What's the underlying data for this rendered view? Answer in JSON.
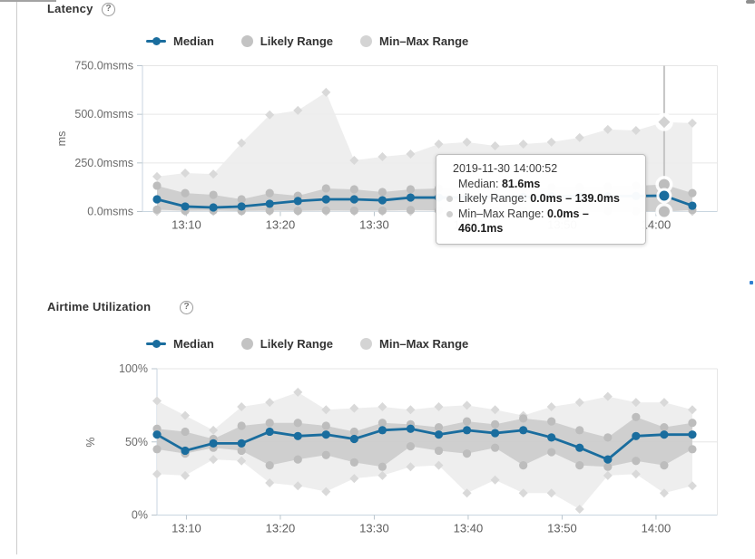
{
  "ui": {
    "help_symbol": "?",
    "tooltip": {
      "timestamp": "2019-11-30 14:00:52",
      "median_label": "Median:",
      "median_value": "81.6ms",
      "likely_label": "Likely Range:",
      "likely_value": "0.0ms – 139.0ms",
      "minmax_label": "Min–Max Range:",
      "minmax_value": "0.0ms – 460.1ms"
    },
    "colors": {
      "median_blue": "#1a6d9e",
      "likely_band": "#c9c9c9",
      "likely_marker": "#bdbdbd",
      "minmax_band": "#ececec",
      "minmax_marker": "#d9d9d9",
      "axis_line": "#c9d6e0",
      "gridline": "#e6e6e6"
    }
  },
  "chart_data": [
    {
      "type": "line",
      "title": "Latency",
      "ylabel": "ms",
      "ylim": [
        0,
        750
      ],
      "grid": true,
      "legend": [
        {
          "label": "Median"
        },
        {
          "label": "Likely Range"
        },
        {
          "label": "Min–Max Range"
        }
      ],
      "y_ticks": [
        [
          0,
          "0.0msms"
        ],
        [
          250,
          "250.0msms"
        ],
        [
          500,
          "500.0msms"
        ],
        [
          750,
          "750.0msms"
        ]
      ],
      "x_ticks": [
        "13:10",
        "13:20",
        "13:30",
        "13:40",
        "13:50",
        "14:00"
      ],
      "x": [
        "13:06:52",
        "13:09:52",
        "13:12:52",
        "13:15:52",
        "13:18:52",
        "13:21:52",
        "13:24:52",
        "13:27:52",
        "13:30:52",
        "13:33:52",
        "13:36:52",
        "13:39:52",
        "13:42:52",
        "13:45:52",
        "13:48:52",
        "13:51:52",
        "13:54:52",
        "13:57:52",
        "14:00:52",
        "14:03:52"
      ],
      "series": [
        {
          "name": "Median",
          "values": [
            63,
            26,
            21,
            26,
            40,
            54,
            63,
            63,
            58,
            72,
            72,
            74,
            76,
            75,
            78,
            79,
            78,
            80,
            81.6,
            30
          ]
        },
        {
          "name": "Likely Range",
          "low": [
            10,
            4,
            5,
            3,
            5,
            4,
            6,
            5,
            5,
            8,
            6,
            5,
            5,
            5,
            5,
            4,
            3,
            2,
            0,
            8
          ],
          "high": [
            133,
            95,
            86,
            63,
            95,
            81,
            119,
            114,
            100,
            114,
            119,
            120,
            122,
            118,
            124,
            126,
            128,
            132,
            139,
            95
          ]
        },
        {
          "name": "Min–Max Range",
          "low": [
            0,
            0,
            0,
            0,
            0,
            0,
            0,
            0,
            0,
            0,
            0,
            0,
            0,
            0,
            0,
            0,
            0,
            0,
            0,
            0
          ],
          "high": [
            180,
            198,
            193,
            352,
            497,
            520,
            613,
            263,
            282,
            296,
            347,
            357,
            338,
            347,
            357,
            380,
            422,
            417,
            460.1,
            455
          ]
        }
      ],
      "selected": {
        "index": 18,
        "timestamp": "2019-11-30 14:00:52",
        "median": 81.6,
        "likely_low": 0.0,
        "likely_high": 139.0,
        "minmax_low": 0.0,
        "minmax_high": 460.1
      }
    },
    {
      "type": "line",
      "title": "Airtime Utilization",
      "ylabel": "%",
      "ylim": [
        0,
        100
      ],
      "grid": true,
      "legend": [
        {
          "label": "Median"
        },
        {
          "label": "Likely Range"
        },
        {
          "label": "Min–Max Range"
        }
      ],
      "y_ticks": [
        [
          0,
          "0%"
        ],
        [
          50,
          "50%"
        ],
        [
          100,
          "100%"
        ]
      ],
      "x_ticks": [
        "13:10",
        "13:20",
        "13:30",
        "13:40",
        "13:50",
        "14:00"
      ],
      "x": [
        "13:06:52",
        "13:09:52",
        "13:12:52",
        "13:15:52",
        "13:18:52",
        "13:21:52",
        "13:24:52",
        "13:27:52",
        "13:30:52",
        "13:33:52",
        "13:36:52",
        "13:39:52",
        "13:42:52",
        "13:45:52",
        "13:48:52",
        "13:51:52",
        "13:54:52",
        "13:57:52",
        "14:00:52",
        "14:03:52"
      ],
      "series": [
        {
          "name": "Median",
          "values": [
            55,
            44,
            49,
            49,
            57,
            54,
            55,
            52,
            58,
            59,
            55,
            58,
            56,
            58,
            53,
            46,
            38,
            54,
            55,
            55
          ]
        },
        {
          "name": "Likely Range",
          "low": [
            45,
            42,
            46,
            44,
            34,
            38,
            41,
            36,
            33,
            47,
            44,
            42,
            46,
            34,
            43,
            34,
            33,
            37,
            34,
            45
          ],
          "high": [
            59,
            57,
            52,
            61,
            63,
            63,
            61,
            57,
            63,
            62,
            60,
            64,
            62,
            66,
            64,
            58,
            53,
            67,
            60,
            63
          ]
        },
        {
          "name": "Min–Max Range",
          "low": [
            28,
            27,
            38,
            37,
            22,
            20,
            16,
            25,
            27,
            33,
            34,
            15,
            24,
            15,
            15,
            4,
            27,
            28,
            15,
            20
          ],
          "high": [
            78,
            68,
            58,
            74,
            77,
            84,
            72,
            73,
            74,
            72,
            74,
            75,
            72,
            68,
            74,
            77,
            81,
            77,
            77,
            72
          ]
        }
      ]
    }
  ]
}
